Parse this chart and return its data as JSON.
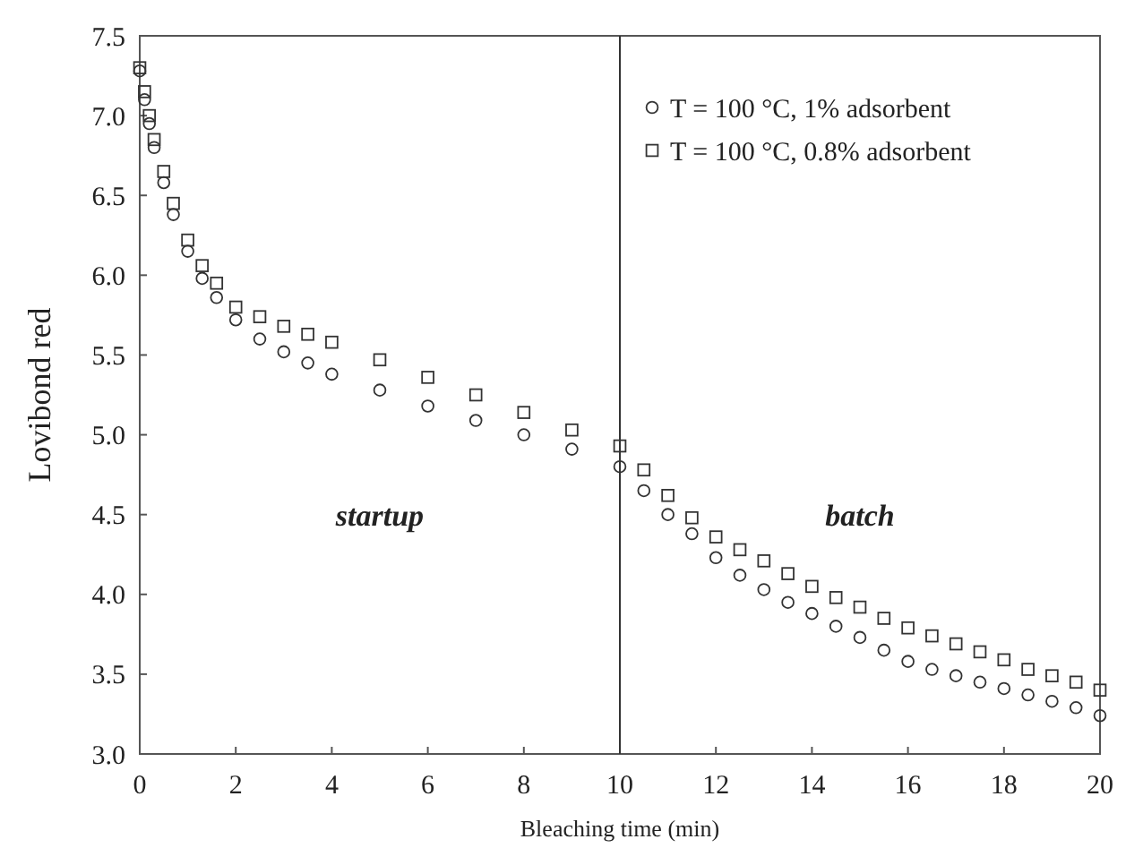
{
  "chart_data": {
    "type": "scatter",
    "xlabel": "Bleaching time (min)",
    "ylabel": "Lovibond red",
    "xlim": [
      0,
      20
    ],
    "xticks": [
      0,
      2,
      4,
      6,
      8,
      10,
      12,
      14,
      16,
      18,
      20
    ],
    "ylim": [
      3.0,
      7.5
    ],
    "yticks": [
      {
        "value": 3.0,
        "label": "3.0"
      },
      {
        "value": 3.5,
        "label": "3.5"
      },
      {
        "value": 4.0,
        "label": "4.0"
      },
      {
        "value": 4.5,
        "label": "4.5"
      },
      {
        "value": 5.0,
        "label": "5.0"
      },
      {
        "value": 5.5,
        "label": "5.5"
      },
      {
        "value": 6.0,
        "label": "6.0"
      },
      {
        "value": 6.5,
        "label": "6.5"
      },
      {
        "value": 7.0,
        "label": "7.0"
      },
      {
        "value": 7.5,
        "label": "7.5"
      }
    ],
    "legend": "top right",
    "grid": false,
    "ref_lines": [
      {
        "axis": "x",
        "value": 10,
        "color": "#333333"
      }
    ],
    "annotations": [
      "startup",
      "batch"
    ],
    "series": [
      {
        "name": "T = 100 °C,  1% adsorbent",
        "color": "#333333",
        "marker": "circle",
        "x": [
          0,
          0.1,
          0.2,
          0.3,
          0.5,
          0.7,
          1,
          1.3,
          1.6,
          2,
          2.5,
          3,
          3.5,
          4,
          5,
          6,
          7,
          8,
          9,
          10,
          10.5,
          11,
          11.5,
          12,
          12.5,
          13,
          13.5,
          14,
          14.5,
          15,
          15.5,
          16,
          16.5,
          17,
          17.5,
          18,
          18.5,
          19,
          19.5,
          20
        ],
        "values": [
          7.28,
          7.1,
          6.95,
          6.8,
          6.58,
          6.38,
          6.15,
          5.98,
          5.86,
          5.72,
          5.6,
          5.52,
          5.45,
          5.38,
          5.28,
          5.18,
          5.09,
          5.0,
          4.91,
          4.8,
          4.65,
          4.5,
          4.38,
          4.23,
          4.12,
          4.03,
          3.95,
          3.88,
          3.8,
          3.73,
          3.65,
          3.58,
          3.53,
          3.49,
          3.45,
          3.41,
          3.37,
          3.33,
          3.29,
          3.24
        ]
      },
      {
        "name": "T = 100 °C, 0.8% adsorbent",
        "color": "#333333",
        "marker": "square",
        "x": [
          0,
          0.1,
          0.2,
          0.3,
          0.5,
          0.7,
          1,
          1.3,
          1.6,
          2,
          2.5,
          3,
          3.5,
          4,
          5,
          6,
          7,
          8,
          9,
          10,
          10.5,
          11,
          11.5,
          12,
          12.5,
          13,
          13.5,
          14,
          14.5,
          15,
          15.5,
          16,
          16.5,
          17,
          17.5,
          18,
          18.5,
          19,
          19.5,
          20
        ],
        "values": [
          7.3,
          7.15,
          7.0,
          6.85,
          6.65,
          6.45,
          6.22,
          6.06,
          5.95,
          5.8,
          5.74,
          5.68,
          5.63,
          5.58,
          5.47,
          5.36,
          5.25,
          5.14,
          5.03,
          4.93,
          4.78,
          4.62,
          4.48,
          4.36,
          4.28,
          4.21,
          4.13,
          4.05,
          3.98,
          3.92,
          3.85,
          3.79,
          3.74,
          3.69,
          3.64,
          3.59,
          3.53,
          3.49,
          3.45,
          3.4
        ]
      }
    ]
  }
}
